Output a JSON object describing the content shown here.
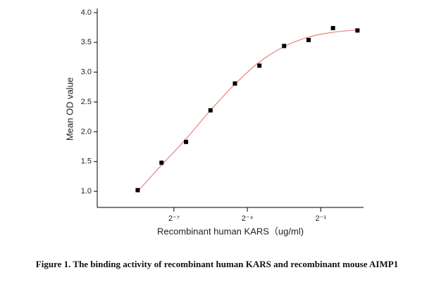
{
  "chart_data": {
    "type": "scatter",
    "xlabel": "Recombinant human KARS（ug/ml)",
    "ylabel": "Mean OD value",
    "caption": "Figure 1. The binding activity of recombinant human KARS and recombinant mouse AIMP1",
    "xscale": "log2",
    "xlim": [
      0.00089,
      1.68
    ],
    "xticks": [
      {
        "value": 0.0078125,
        "label": "2⁻⁷"
      },
      {
        "value": 0.0625,
        "label": "2⁻⁴"
      },
      {
        "value": 0.5,
        "label": "2⁻¹"
      }
    ],
    "ylim": [
      0.73,
      4.07
    ],
    "yticks": [
      {
        "value": 1.0,
        "label": "1.0"
      },
      {
        "value": 1.5,
        "label": "1.5"
      },
      {
        "value": 2.0,
        "label": "2.0"
      },
      {
        "value": 2.5,
        "label": "2.5"
      },
      {
        "value": 3.0,
        "label": "3.0"
      },
      {
        "value": 3.5,
        "label": "3.5"
      },
      {
        "value": 4.0,
        "label": "4.0"
      }
    ],
    "series": [
      {
        "color": "#000000",
        "x": [
          0.0028,
          0.0055,
          0.011,
          0.022,
          0.044,
          0.088,
          0.177,
          0.354,
          0.707,
          1.414
        ],
        "values": [
          1.02,
          1.48,
          1.83,
          2.36,
          2.81,
          3.11,
          3.44,
          3.54,
          3.74,
          3.7
        ]
      },
      {
        "color": "#e8837f",
        "line": true,
        "x": [
          0.0028,
          0.0055,
          0.011,
          0.022,
          0.044,
          0.088,
          0.177,
          0.354,
          0.707,
          1.414
        ],
        "values": [
          1.0,
          1.44,
          1.88,
          2.36,
          2.8,
          3.17,
          3.43,
          3.59,
          3.67,
          3.71
        ]
      }
    ]
  }
}
